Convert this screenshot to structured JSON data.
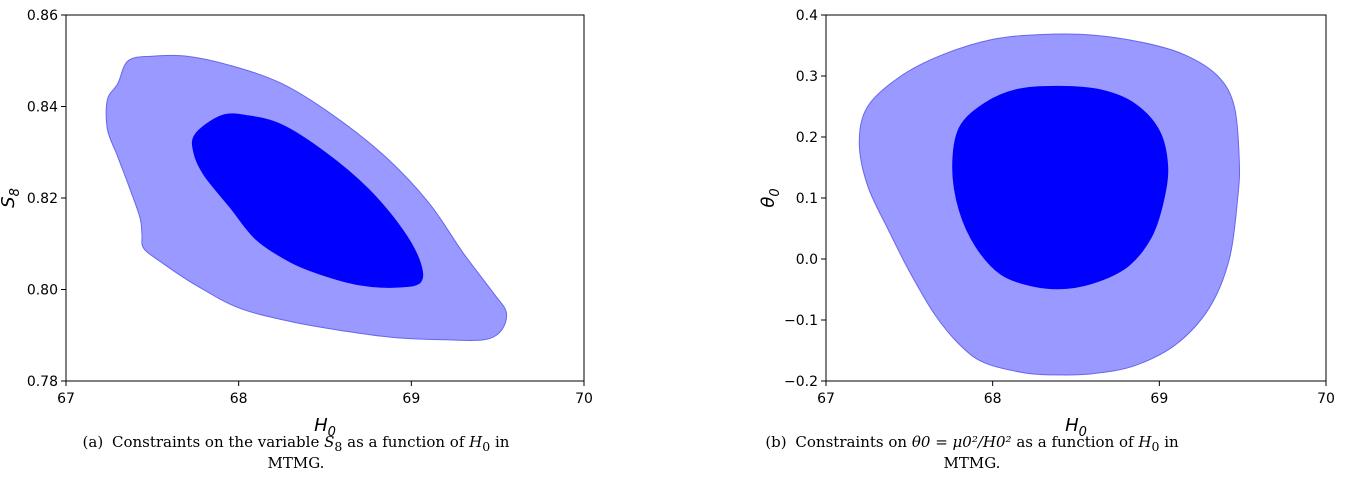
{
  "chart_data": [
    {
      "type": "contour",
      "panel": "(a)",
      "xlabel": "H",
      "xlabel_sub": "0",
      "ylabel": "S",
      "ylabel_sub": "8",
      "xlim": [
        67,
        70
      ],
      "ylim": [
        0.78,
        0.86
      ],
      "xticks": [
        "67",
        "68",
        "69",
        "70"
      ],
      "yticks": [
        "0.78",
        "0.80",
        "0.82",
        "0.84",
        "0.86"
      ],
      "series": [
        {
          "level": "outer",
          "color": "#9999ff",
          "edge": "#6666ee",
          "points": [
            [
              67.3,
              0.845
            ],
            [
              67.36,
              0.85
            ],
            [
              67.5,
              0.851
            ],
            [
              67.7,
              0.851
            ],
            [
              67.95,
              0.849
            ],
            [
              68.25,
              0.845
            ],
            [
              68.55,
              0.838
            ],
            [
              68.85,
              0.829
            ],
            [
              69.1,
              0.819
            ],
            [
              69.3,
              0.808
            ],
            [
              69.48,
              0.799
            ],
            [
              69.55,
              0.795
            ],
            [
              69.52,
              0.791
            ],
            [
              69.42,
              0.789
            ],
            [
              69.2,
              0.789
            ],
            [
              68.9,
              0.7895
            ],
            [
              68.6,
              0.791
            ],
            [
              68.3,
              0.793
            ],
            [
              68.0,
              0.796
            ],
            [
              67.75,
              0.801
            ],
            [
              67.55,
              0.806
            ],
            [
              67.45,
              0.809
            ],
            [
              67.44,
              0.812
            ],
            [
              67.43,
              0.8155
            ],
            [
              67.38,
              0.821
            ],
            [
              67.3,
              0.829
            ],
            [
              67.24,
              0.835
            ],
            [
              67.24,
              0.8415
            ]
          ]
        },
        {
          "level": "inner",
          "color": "#0000ff",
          "edge": "#0000ff",
          "points": [
            [
              67.75,
              0.834
            ],
            [
              67.9,
              0.838
            ],
            [
              68.05,
              0.838
            ],
            [
              68.25,
              0.836
            ],
            [
              68.5,
              0.83
            ],
            [
              68.75,
              0.822
            ],
            [
              68.95,
              0.813
            ],
            [
              69.05,
              0.806
            ],
            [
              69.05,
              0.8015
            ],
            [
              68.9,
              0.8005
            ],
            [
              68.7,
              0.801
            ],
            [
              68.5,
              0.803
            ],
            [
              68.3,
              0.806
            ],
            [
              68.1,
              0.811
            ],
            [
              67.95,
              0.818
            ],
            [
              67.8,
              0.825
            ],
            [
              67.74,
              0.83
            ]
          ]
        }
      ],
      "caption_tag": "(a)",
      "caption_pre": "Constraints on the variable",
      "caption_sym": "S",
      "caption_sub": "8",
      "caption_mid": "as a function of",
      "caption_sym2": "H",
      "caption_sub2": "0",
      "caption_end": "in",
      "caption_line2": "MTMG."
    },
    {
      "type": "contour",
      "panel": "(b)",
      "xlabel": "H",
      "xlabel_sub": "0",
      "ylabel": "θ",
      "ylabel_sub": "0",
      "xlim": [
        67,
        70
      ],
      "ylim": [
        -0.2,
        0.4
      ],
      "xticks": [
        "67",
        "68",
        "69",
        "70"
      ],
      "yticks": [
        "−0.2",
        "−0.1",
        "0.0",
        "0.1",
        "0.2",
        "0.3",
        "0.4"
      ],
      "series": [
        {
          "level": "outer",
          "color": "#9999ff",
          "edge": "#6666ee",
          "points": [
            [
              67.25,
              0.25
            ],
            [
              67.45,
              0.3
            ],
            [
              67.7,
              0.335
            ],
            [
              68.0,
              0.36
            ],
            [
              68.3,
              0.368
            ],
            [
              68.6,
              0.367
            ],
            [
              68.9,
              0.355
            ],
            [
              69.15,
              0.335
            ],
            [
              69.35,
              0.3
            ],
            [
              69.45,
              0.25
            ],
            [
              69.48,
              0.16
            ],
            [
              69.47,
              0.1
            ],
            [
              69.42,
              0.0
            ],
            [
              69.3,
              -0.08
            ],
            [
              69.1,
              -0.14
            ],
            [
              68.85,
              -0.175
            ],
            [
              68.6,
              -0.188
            ],
            [
              68.4,
              -0.19
            ],
            [
              68.2,
              -0.187
            ],
            [
              67.95,
              -0.17
            ],
            [
              67.8,
              -0.14
            ],
            [
              67.65,
              -0.09
            ],
            [
              67.5,
              -0.02
            ],
            [
              67.37,
              0.05
            ],
            [
              67.25,
              0.12
            ],
            [
              67.2,
              0.19
            ]
          ]
        },
        {
          "level": "inner",
          "color": "#0000ff",
          "edge": "#0000ff",
          "points": [
            [
              67.8,
              0.215
            ],
            [
              67.95,
              0.255
            ],
            [
              68.15,
              0.278
            ],
            [
              68.4,
              0.283
            ],
            [
              68.65,
              0.277
            ],
            [
              68.85,
              0.255
            ],
            [
              69.0,
              0.21
            ],
            [
              69.05,
              0.15
            ],
            [
              69.02,
              0.09
            ],
            [
              68.95,
              0.035
            ],
            [
              68.82,
              -0.01
            ],
            [
              68.65,
              -0.035
            ],
            [
              68.45,
              -0.048
            ],
            [
              68.25,
              -0.045
            ],
            [
              68.05,
              -0.025
            ],
            [
              67.9,
              0.02
            ],
            [
              67.8,
              0.08
            ],
            [
              67.76,
              0.15
            ]
          ]
        }
      ],
      "caption_tag": "(b)",
      "caption_pre": "Constraints on",
      "caption_formula": "θ0 = μ0²/H0²",
      "caption_mid": "as a function of",
      "caption_sym2": "H",
      "caption_sub2": "0",
      "caption_end": "in",
      "caption_line2": "MTMG."
    }
  ]
}
